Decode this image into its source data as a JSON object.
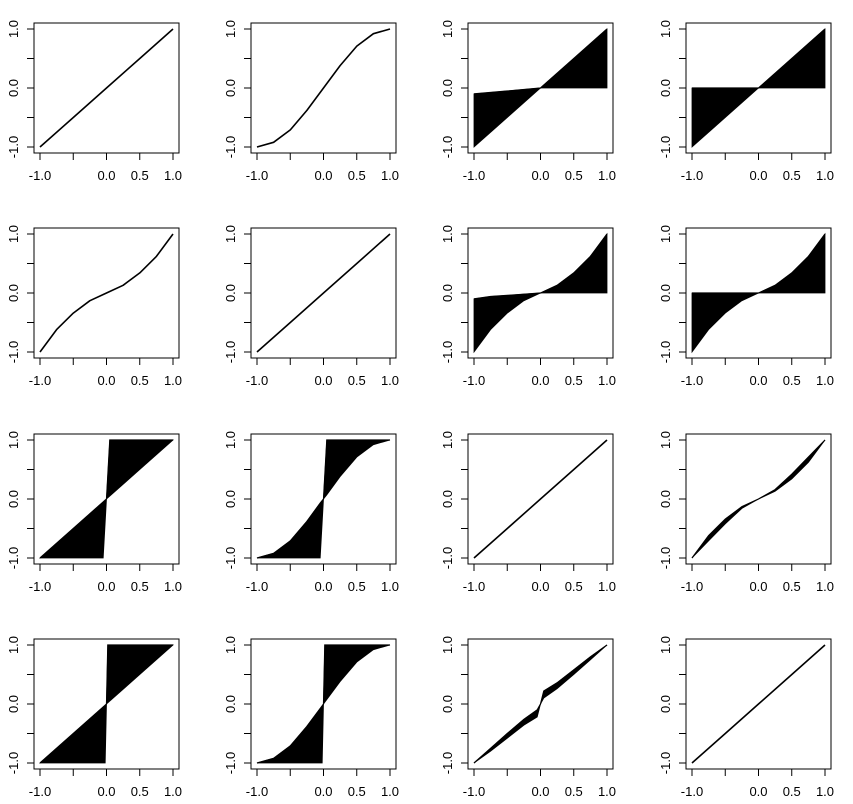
{
  "chart_data": {
    "type": "line",
    "layout": "4x4 grid of small-multiple panels",
    "grid": false,
    "xlim": [
      -1,
      1
    ],
    "ylim": [
      -1,
      1
    ],
    "x_ticks": [
      -1.0,
      -0.5,
      0.0,
      0.5,
      1.0
    ],
    "x_tick_labels": [
      "-1.0",
      "",
      "0.0",
      "0.5",
      "1.0"
    ],
    "y_ticks": [
      -1.0,
      -0.5,
      0.0,
      0.5,
      1.0
    ],
    "y_tick_labels": [
      "-1.0",
      "",
      "0.0",
      "",
      "1.0"
    ],
    "panels": [
      {
        "row": 1,
        "col": 1,
        "kind": "curve",
        "x": [
          -1,
          -0.5,
          0,
          0.5,
          1
        ],
        "y": [
          -1,
          -0.5,
          0,
          0.5,
          1
        ]
      },
      {
        "row": 1,
        "col": 2,
        "kind": "curve",
        "x": [
          -1,
          -0.75,
          -0.5,
          -0.25,
          0,
          0.25,
          0.5,
          0.75,
          1
        ],
        "y": [
          -1,
          -0.92,
          -0.71,
          -0.38,
          0,
          0.38,
          0.71,
          0.92,
          1
        ]
      },
      {
        "row": 1,
        "col": 3,
        "kind": "band",
        "x": [
          -1,
          -0.5,
          0,
          0.5,
          1
        ],
        "y_lower": [
          -1,
          -0.5,
          0,
          0,
          0
        ],
        "y_upper": [
          -0.1,
          -0.05,
          0,
          0.5,
          1
        ]
      },
      {
        "row": 1,
        "col": 4,
        "kind": "band",
        "x": [
          -1,
          -0.5,
          0,
          0.5,
          1
        ],
        "y_lower": [
          -1,
          -0.5,
          0,
          0,
          0
        ],
        "y_upper": [
          0,
          0,
          0,
          0.5,
          1
        ]
      },
      {
        "row": 2,
        "col": 1,
        "kind": "curve",
        "x": [
          -1,
          -0.75,
          -0.5,
          -0.25,
          0,
          0.25,
          0.5,
          0.75,
          1
        ],
        "y": [
          -1,
          -0.62,
          -0.34,
          -0.13,
          0,
          0.13,
          0.34,
          0.62,
          1
        ]
      },
      {
        "row": 2,
        "col": 2,
        "kind": "curve",
        "x": [
          -1,
          -0.5,
          0,
          0.5,
          1
        ],
        "y": [
          -1,
          -0.5,
          0,
          0.5,
          1
        ]
      },
      {
        "row": 2,
        "col": 3,
        "kind": "band",
        "x": [
          -1,
          -0.75,
          -0.5,
          -0.25,
          0,
          0.25,
          0.5,
          0.75,
          1
        ],
        "y_lower": [
          -1,
          -0.62,
          -0.34,
          -0.13,
          0,
          0,
          0,
          0,
          0
        ],
        "y_upper": [
          -0.1,
          -0.06,
          -0.04,
          -0.02,
          0,
          0.13,
          0.34,
          0.62,
          1
        ]
      },
      {
        "row": 2,
        "col": 4,
        "kind": "band",
        "x": [
          -1,
          -0.75,
          -0.5,
          -0.25,
          0,
          0.25,
          0.5,
          0.75,
          1
        ],
        "y_lower": [
          -1,
          -0.62,
          -0.34,
          -0.13,
          0,
          0,
          0,
          0,
          0
        ],
        "y_upper": [
          0,
          0,
          0,
          0,
          0,
          0.13,
          0.34,
          0.62,
          1
        ]
      },
      {
        "row": 3,
        "col": 1,
        "kind": "band",
        "x": [
          -1,
          -0.5,
          -0.05,
          0,
          0.05,
          0.5,
          1
        ],
        "y_lower": [
          -1,
          -1,
          -1,
          0,
          0.05,
          0.5,
          1
        ],
        "y_upper": [
          -1,
          -0.5,
          -0.05,
          0,
          1,
          1,
          1
        ]
      },
      {
        "row": 3,
        "col": 2,
        "kind": "band",
        "x": [
          -1,
          -0.75,
          -0.5,
          -0.25,
          -0.05,
          0,
          0.05,
          0.25,
          0.5,
          0.75,
          1
        ],
        "y_lower": [
          -1,
          -1,
          -1,
          -1,
          -1,
          0,
          0.07,
          0.38,
          0.71,
          0.92,
          1
        ],
        "y_upper": [
          -1,
          -0.92,
          -0.71,
          -0.38,
          -0.07,
          0,
          1,
          1,
          1,
          1,
          1
        ]
      },
      {
        "row": 3,
        "col": 3,
        "kind": "curve",
        "x": [
          -1,
          -0.5,
          0,
          0.5,
          1
        ],
        "y": [
          -1,
          -0.5,
          0,
          0.5,
          1
        ]
      },
      {
        "row": 3,
        "col": 4,
        "kind": "band",
        "x": [
          -1,
          -0.75,
          -0.5,
          -0.25,
          0,
          0.25,
          0.5,
          0.75,
          1
        ],
        "y_lower": [
          -1,
          -0.71,
          -0.42,
          -0.16,
          0,
          0.13,
          0.34,
          0.62,
          1
        ],
        "y_upper": [
          -1,
          -0.62,
          -0.34,
          -0.13,
          0,
          0.16,
          0.42,
          0.71,
          1
        ]
      },
      {
        "row": 4,
        "col": 1,
        "kind": "band",
        "x": [
          -1,
          -0.5,
          -0.02,
          0,
          0.02,
          0.5,
          1
        ],
        "y_lower": [
          -1,
          -1,
          -1,
          0,
          0.02,
          0.5,
          1
        ],
        "y_upper": [
          -1,
          -0.5,
          -0.02,
          0,
          1,
          1,
          1
        ]
      },
      {
        "row": 4,
        "col": 2,
        "kind": "band",
        "x": [
          -1,
          -0.75,
          -0.5,
          -0.25,
          -0.02,
          0,
          0.02,
          0.25,
          0.5,
          0.75,
          1
        ],
        "y_lower": [
          -1,
          -1,
          -1,
          -1,
          -1,
          0,
          0.03,
          0.38,
          0.71,
          0.92,
          1
        ],
        "y_upper": [
          -1,
          -0.92,
          -0.71,
          -0.38,
          -0.03,
          0,
          1,
          1,
          1,
          1,
          1
        ]
      },
      {
        "row": 4,
        "col": 3,
        "kind": "band",
        "x": [
          -1,
          -0.75,
          -0.5,
          -0.25,
          -0.05,
          0,
          0.05,
          0.25,
          0.5,
          0.75,
          1
        ],
        "y_lower": [
          -1,
          -0.8,
          -0.58,
          -0.36,
          -0.22,
          0,
          0.1,
          0.26,
          0.5,
          0.75,
          1
        ],
        "y_upper": [
          -1,
          -0.75,
          -0.5,
          -0.26,
          -0.1,
          0,
          0.22,
          0.36,
          0.58,
          0.8,
          1
        ]
      },
      {
        "row": 4,
        "col": 4,
        "kind": "curve",
        "x": [
          -1,
          -0.5,
          0,
          0.5,
          1
        ],
        "y": [
          -1,
          -0.5,
          0,
          0.5,
          1
        ]
      }
    ]
  }
}
